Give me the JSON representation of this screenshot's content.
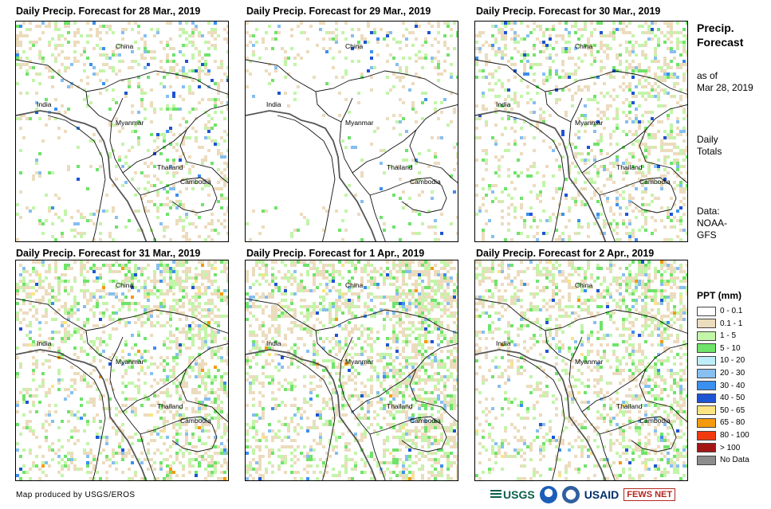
{
  "panels": [
    {
      "title": "Daily Precip. Forecast for 28 Mar., 2019",
      "rain_level": 1
    },
    {
      "title": "Daily Precip. Forecast for 29 Mar., 2019",
      "rain_level": 0
    },
    {
      "title": "Daily Precip. Forecast for 30 Mar., 2019",
      "rain_level": 2
    },
    {
      "title": "Daily Precip. Forecast for 31 Mar., 2019",
      "rain_level": 3
    },
    {
      "title": "Daily Precip. Forecast for 1 Apr., 2019",
      "rain_level": 4
    },
    {
      "title": "Daily Precip. Forecast for 2 Apr., 2019",
      "rain_level": 3
    }
  ],
  "country_labels": {
    "china": "China",
    "india": "India",
    "myanmar": "Myanmar",
    "thailand": "Thailand",
    "cambodia": "Cambodia"
  },
  "sidebar": {
    "title_line1": "Precip.",
    "title_line2": "Forecast",
    "asof_line1": "as of",
    "asof_line2": "Mar 28, 2019",
    "daily_line1": "Daily",
    "daily_line2": "Totals",
    "data_line1": "Data:",
    "data_line2": "NOAA-",
    "data_line3": "GFS"
  },
  "legend": {
    "title": "PPT (mm)",
    "items": [
      {
        "label": "0 - 0.1",
        "color": "#ffffff"
      },
      {
        "label": "0.1 - 1",
        "color": "#ecdcbe"
      },
      {
        "label": "1 - 5",
        "color": "#c2f5a8"
      },
      {
        "label": "5 - 10",
        "color": "#6fe36a"
      },
      {
        "label": "10 - 20",
        "color": "#bdeef8"
      },
      {
        "label": "20 - 30",
        "color": "#86bff0"
      },
      {
        "label": "30 - 40",
        "color": "#3b8ff0"
      },
      {
        "label": "40 - 50",
        "color": "#1d54d6"
      },
      {
        "label": "50 - 65",
        "color": "#fbe582"
      },
      {
        "label": "65 - 80",
        "color": "#f59a0c"
      },
      {
        "label": "80 - 100",
        "color": "#f23a0e"
      },
      {
        "label": "> 100",
        "color": "#a31616"
      },
      {
        "label": "No Data",
        "color": "#8c8c8c"
      }
    ]
  },
  "footer": {
    "credit": "Map produced by USGS/EROS",
    "logo_usgs": "USGS",
    "logo_usaid": "USAID",
    "logo_fews": "FEWS NET"
  }
}
